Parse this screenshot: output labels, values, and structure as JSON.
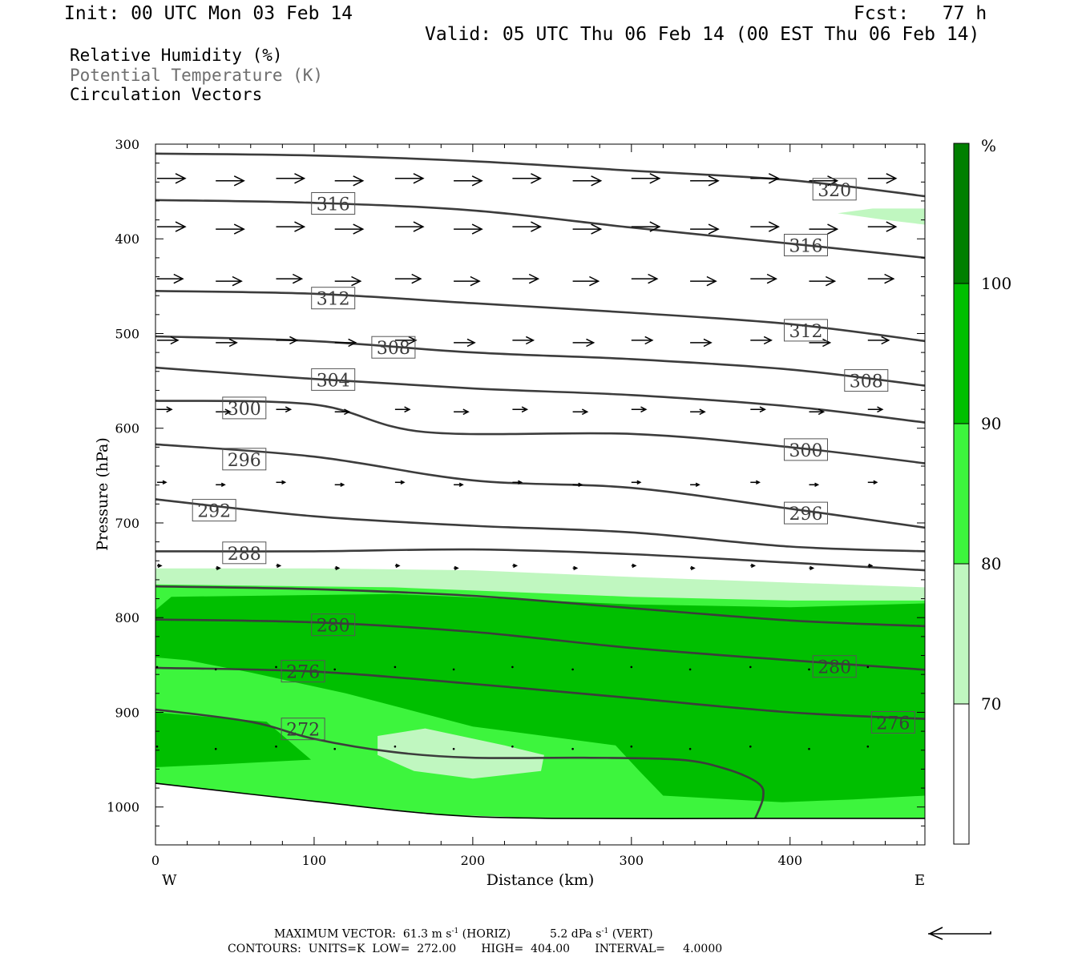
{
  "header": {
    "init": "Init: 00 UTC Mon 03 Feb 14",
    "fcst": "Fcst:   77 h",
    "valid": "Valid: 05 UTC Thu 06 Feb 14 (00 EST Thu 06 Feb 14)"
  },
  "legend": {
    "rh": "Relative Humidity (%)",
    "theta": "Potential Temperature (K)",
    "vectors": "Circulation Vectors"
  },
  "footer": {
    "max_vector_label": "MAXIMUM VECTOR:",
    "horiz_value": "61.3 m s",
    "horiz_unit": "(HORIZ)",
    "vert_value": "5.2 dPa s",
    "vert_unit": "(VERT)",
    "exponent": "-1",
    "contours": "CONTOURS:  UNITS=K  LOW=  272.00       HIGH=  404.00       INTERVAL=     4.0000"
  },
  "colors": {
    "rh70": "#c0f7c0",
    "rh80": "#3df53d",
    "rh90": "#00bf00",
    "rh100": "#007f00",
    "contour": "#3c3c3c"
  },
  "chart_data": {
    "type": "cross-section",
    "xlabel": "Distance (km)",
    "ylabel": "Pressure (hPa)",
    "xlim": [
      0,
      485
    ],
    "ylim": [
      300,
      1040
    ],
    "x_ticks": [
      0,
      100,
      200,
      300,
      400
    ],
    "y_ticks": [
      300,
      400,
      500,
      600,
      700,
      800,
      900,
      1000
    ],
    "end_labels": {
      "west": "W",
      "east": "E"
    },
    "colorbar": {
      "unit": "%",
      "levels": [
        70,
        80,
        90,
        100
      ],
      "colors": [
        "#ffffff",
        "#c0f7c0",
        "#3df53d",
        "#00bf00",
        "#007f00"
      ]
    },
    "rh_fill": [
      {
        "level": 70,
        "color": "#c0f7c0",
        "pts": [
          [
            0,
            748
          ],
          [
            100,
            748
          ],
          [
            200,
            750
          ],
          [
            300,
            757
          ],
          [
            400,
            763
          ],
          [
            485,
            768
          ],
          [
            485,
            1012
          ],
          [
            380,
            1012
          ],
          [
            250,
            1012
          ],
          [
            180,
            1008
          ],
          [
            100,
            994
          ],
          [
            0,
            975
          ]
        ]
      },
      {
        "level": 80,
        "color": "#3df53d",
        "pts": [
          [
            0,
            765
          ],
          [
            150,
            768
          ],
          [
            300,
            778
          ],
          [
            400,
            782
          ],
          [
            485,
            782
          ],
          [
            485,
            1012
          ],
          [
            380,
            1012
          ],
          [
            250,
            1012
          ],
          [
            180,
            1008
          ],
          [
            100,
            994
          ],
          [
            0,
            975
          ]
        ]
      },
      {
        "level": 90,
        "color": "#00bf00",
        "pts": [
          [
            0,
            792
          ],
          [
            10,
            778
          ],
          [
            150,
            775
          ],
          [
            300,
            786
          ],
          [
            400,
            789
          ],
          [
            485,
            785
          ],
          [
            485,
            988
          ],
          [
            440,
            992
          ],
          [
            395,
            995
          ],
          [
            320,
            988
          ],
          [
            305,
            962
          ],
          [
            290,
            935
          ],
          [
            200,
            915
          ],
          [
            120,
            880
          ],
          [
            60,
            858
          ],
          [
            20,
            845
          ],
          [
            0,
            842
          ]
        ]
      },
      {
        "level": 90,
        "color": "#00bf00",
        "pts": [
          [
            0,
            900
          ],
          [
            70,
            910
          ],
          [
            98,
            950
          ],
          [
            40,
            955
          ],
          [
            0,
            958
          ]
        ]
      },
      {
        "level": 70,
        "color": "#c0f7c0",
        "pts": [
          [
            140,
            925
          ],
          [
            170,
            917
          ],
          [
            220,
            935
          ],
          [
            245,
            945
          ],
          [
            243,
            962
          ],
          [
            200,
            970
          ],
          [
            163,
            962
          ],
          [
            140,
            945
          ]
        ]
      },
      {
        "level": 70,
        "color": "#c0f7c0",
        "pts": [
          [
            430,
            373
          ],
          [
            452,
            368
          ],
          [
            485,
            368
          ],
          [
            485,
            385
          ],
          [
            460,
            380
          ]
        ]
      }
    ],
    "theta_contours": [
      {
        "value": 272,
        "pts": [
          [
            0,
            897
          ],
          [
            60,
            910
          ],
          [
            100,
            928
          ],
          [
            150,
            942
          ],
          [
            200,
            948
          ],
          [
            270,
            948
          ],
          [
            330,
            950
          ],
          [
            360,
            960
          ],
          [
            380,
            975
          ],
          [
            383,
            990
          ],
          [
            378,
            1012
          ]
        ]
      },
      {
        "value": 276,
        "pts": [
          [
            0,
            853
          ],
          [
            100,
            857
          ],
          [
            200,
            870
          ],
          [
            300,
            885
          ],
          [
            400,
            900
          ],
          [
            485,
            907
          ]
        ]
      },
      {
        "value": 280,
        "pts": [
          [
            0,
            802
          ],
          [
            100,
            805
          ],
          [
            200,
            815
          ],
          [
            300,
            832
          ],
          [
            400,
            845
          ],
          [
            485,
            855
          ]
        ]
      },
      {
        "value": 284,
        "pts": [
          [
            0,
            767
          ],
          [
            100,
            770
          ],
          [
            200,
            777
          ],
          [
            300,
            790
          ],
          [
            400,
            803
          ],
          [
            485,
            809
          ]
        ]
      },
      {
        "value": 288,
        "pts": [
          [
            0,
            730
          ],
          [
            100,
            730
          ],
          [
            200,
            728
          ],
          [
            300,
            733
          ],
          [
            400,
            742
          ],
          [
            485,
            750
          ]
        ]
      },
      {
        "value": 292,
        "pts": [
          [
            0,
            675
          ],
          [
            100,
            693
          ],
          [
            200,
            703
          ],
          [
            300,
            710
          ],
          [
            400,
            725
          ],
          [
            485,
            730
          ]
        ]
      },
      {
        "value": 296,
        "pts": [
          [
            0,
            617
          ],
          [
            100,
            630
          ],
          [
            200,
            655
          ],
          [
            300,
            663
          ],
          [
            400,
            685
          ],
          [
            485,
            705
          ]
        ]
      },
      {
        "value": 300,
        "pts": [
          [
            0,
            571
          ],
          [
            100,
            575
          ],
          [
            170,
            604
          ],
          [
            300,
            606
          ],
          [
            400,
            620
          ],
          [
            485,
            637
          ]
        ]
      },
      {
        "value": 304,
        "pts": [
          [
            0,
            536
          ],
          [
            100,
            548
          ],
          [
            200,
            558
          ],
          [
            300,
            565
          ],
          [
            400,
            577
          ],
          [
            485,
            594
          ]
        ]
      },
      {
        "value": 308,
        "pts": [
          [
            0,
            503
          ],
          [
            100,
            508
          ],
          [
            200,
            520
          ],
          [
            300,
            527
          ],
          [
            400,
            538
          ],
          [
            485,
            555
          ]
        ]
      },
      {
        "value": 312,
        "pts": [
          [
            0,
            455
          ],
          [
            100,
            458
          ],
          [
            200,
            468
          ],
          [
            300,
            478
          ],
          [
            400,
            490
          ],
          [
            485,
            508
          ]
        ]
      },
      {
        "value": 316,
        "pts": [
          [
            0,
            359
          ],
          [
            100,
            362
          ],
          [
            200,
            370
          ],
          [
            300,
            388
          ],
          [
            400,
            405
          ],
          [
            485,
            420
          ]
        ]
      },
      {
        "value": 320,
        "pts": [
          [
            0,
            310
          ],
          [
            100,
            312
          ],
          [
            200,
            318
          ],
          [
            300,
            328
          ],
          [
            400,
            338
          ],
          [
            485,
            355
          ]
        ]
      }
    ],
    "theta_labels": [
      {
        "text": "316",
        "x": 112,
        "p": 363
      },
      {
        "text": "320",
        "x": 428,
        "p": 348
      },
      {
        "text": "316",
        "x": 410,
        "p": 407
      },
      {
        "text": "312",
        "x": 112,
        "p": 463
      },
      {
        "text": "312",
        "x": 410,
        "p": 497
      },
      {
        "text": "308",
        "x": 150,
        "p": 515
      },
      {
        "text": "308",
        "x": 448,
        "p": 550
      },
      {
        "text": "304",
        "x": 112,
        "p": 549
      },
      {
        "text": "300",
        "x": 56,
        "p": 579
      },
      {
        "text": "300",
        "x": 410,
        "p": 623
      },
      {
        "text": "296",
        "x": 56,
        "p": 633
      },
      {
        "text": "296",
        "x": 410,
        "p": 690
      },
      {
        "text": "292",
        "x": 37,
        "p": 687
      },
      {
        "text": "288",
        "x": 56,
        "p": 732
      },
      {
        "text": "280",
        "x": 112,
        "p": 808
      },
      {
        "text": "280",
        "x": 428,
        "p": 852
      },
      {
        "text": "276",
        "x": 93,
        "p": 857
      },
      {
        "text": "276",
        "x": 465,
        "p": 911
      },
      {
        "text": "272",
        "x": 93,
        "p": 918
      }
    ],
    "vector_rows": [
      {
        "p": 337,
        "len": 35
      },
      {
        "p": 388,
        "len": 35
      },
      {
        "p": 443,
        "len": 32
      },
      {
        "p": 508,
        "len": 26
      },
      {
        "p": 581,
        "len": 18
      },
      {
        "p": 658,
        "len": 11
      },
      {
        "p": 746,
        "len": 5
      },
      {
        "p": 853,
        "len": 1.5
      },
      {
        "p": 937,
        "len": 1.5
      }
    ],
    "vector_x": [
      0,
      37,
      75,
      112,
      150,
      187,
      224,
      262,
      299,
      336,
      374,
      411,
      448
    ]
  }
}
